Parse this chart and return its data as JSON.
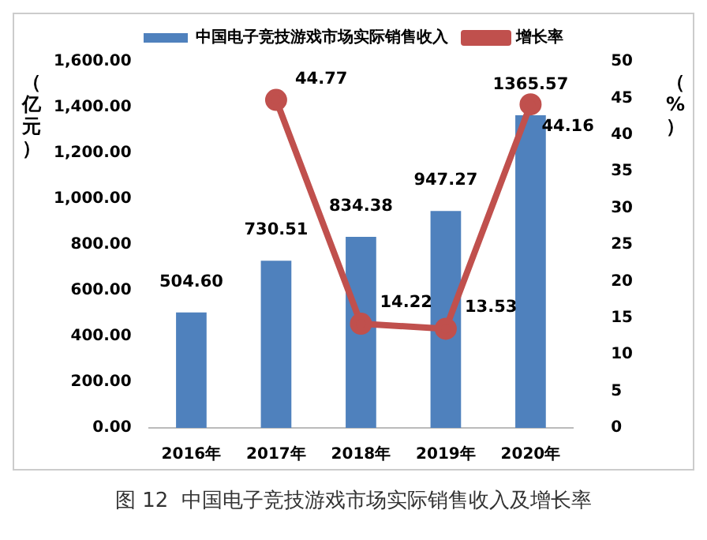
{
  "chart_data": {
    "type": "bar",
    "categories": [
      "2016年",
      "2017年",
      "2018年",
      "2019年",
      "2020年"
    ],
    "series": [
      {
        "name": "中国电子竞技游戏市场实际销售收入",
        "color": "#4f81bd",
        "values": [
          504.6,
          730.51,
          834.38,
          947.27,
          1365.57
        ],
        "value_labels": [
          "504.60",
          "730.51",
          "834.38",
          "947.27",
          "1365.57"
        ]
      },
      {
        "name": "增长率",
        "type": "line",
        "axis": "y2",
        "color": "#c0504d",
        "values": [
          null,
          44.77,
          14.22,
          13.53,
          44.16
        ],
        "value_labels": [
          null,
          "44.77",
          "14.22",
          "13.53",
          "44.16"
        ]
      }
    ],
    "ylabel": "（亿元）",
    "y2label": "（%）",
    "ylim": [
      0,
      1600
    ],
    "yticks": [
      {
        "value": 0,
        "label": "0.00"
      },
      {
        "value": 200,
        "label": "200.00"
      },
      {
        "value": 400,
        "label": "400.00"
      },
      {
        "value": 600,
        "label": "600.00"
      },
      {
        "value": 800,
        "label": "800.00"
      },
      {
        "value": 1000,
        "label": "1,000.00"
      },
      {
        "value": 1200,
        "label": "1,200.00"
      },
      {
        "value": 1400,
        "label": "1,400.00"
      },
      {
        "value": 1600,
        "label": "1,600.00"
      }
    ],
    "y2lim": [
      0,
      50
    ],
    "y2ticks": [
      0,
      5,
      10,
      15,
      20,
      25,
      30,
      35,
      40,
      45,
      50
    ],
    "legend": "top",
    "grid": false,
    "marker": "circle",
    "line_style": "solid",
    "annotations": [
      "图 12  中国电子竞技游戏市场实际销售收入及增长率"
    ]
  }
}
